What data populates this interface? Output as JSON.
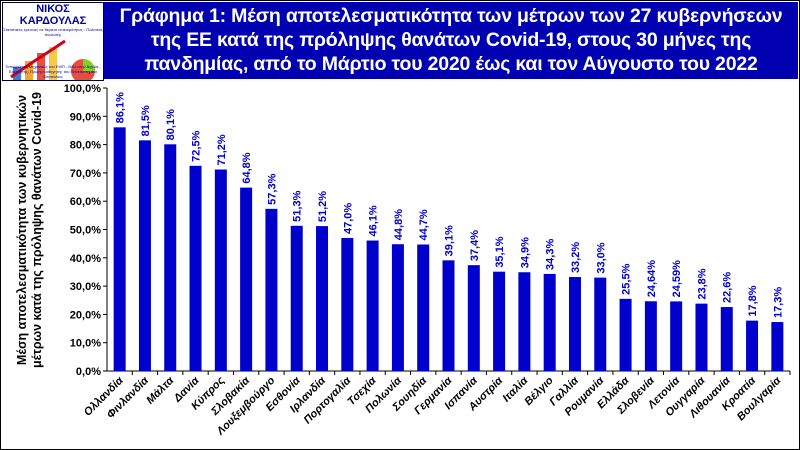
{
  "logo": {
    "name": "ΝΙΚΟΣ ΚΑΡΔΟΥΛΑΣ",
    "subtitle": "Στατιστικός έρευνας σε θέματα επικαιρότητας - Πολιτικός Αναλυτής",
    "footer": "Τοπογράφος Μηχανικός του ΕΜΠ - MSc στην Αγγλία - Ερευνητής, Πρώην καθηγητής του Πανεπιστημίου Θεσσαλίας"
  },
  "chart_data": {
    "type": "bar",
    "title": "Γράφημα 1: Μέση αποτελεσματικότητα των μέτρων των 27 κυβερνήσεων της ΕΕ κατά της πρόληψης θανάτων Covid-19, στους 30 μήνες της πανδημίας, από το Μάρτιο του 2020 έως και τον Αύγουστο του 2022",
    "title_lines": [
      "Γράφημα 1: Μέση αποτελεσματικότητα των μέτρων των 27 κυβερνήσεων",
      "της  ΕΕ  κατά της πρόληψης θανάτων Covid-19, στους 30 μήνες της",
      "πανδημίας, από το Μάρτιο του 2020 έως και τον Αύγουστο του 2022"
    ],
    "ylabel_lines": [
      "Μέση αποτελεσματικότητα των κυβερνητικών",
      "μέτρων κατά της πρόληψης θανάτων Covid-19"
    ],
    "xlabel": "",
    "ylim": [
      0,
      100
    ],
    "yticks": [
      "0,0%",
      "10,0%",
      "20,0%",
      "30,0%",
      "40,0%",
      "50,0%",
      "60,0%",
      "70,0%",
      "80,0%",
      "90,0%",
      "100,0%"
    ],
    "grid": false,
    "bar_color": "#0000cc",
    "categories": [
      "Ολλανδία",
      "Φινλανδία",
      "Μάλτα",
      "Δανία",
      "Κύπρος",
      "Σλοβακία",
      "Λουξεμβούργο",
      "Εσθονία",
      "Ιρλανδία",
      "Πορτογαλία",
      "Τσεχία",
      "Πολωνία",
      "Σουηδία",
      "Γερμανία",
      "Ισπανία",
      "Αυστρία",
      "Ιταλία",
      "Βέλγιο",
      "Γαλλία",
      "Ρουμανία",
      "Ελλάδα",
      "Σλοβενία",
      "Λετονία",
      "Ουγγαρία",
      "Λιθουανία",
      "Κροατία",
      "Βουλγαρία"
    ],
    "values": [
      86.1,
      81.5,
      80.1,
      72.5,
      71.2,
      64.8,
      57.3,
      51.3,
      51.2,
      47.0,
      46.1,
      44.8,
      44.7,
      39.1,
      37.4,
      35.1,
      34.9,
      34.3,
      33.2,
      33.0,
      25.5,
      24.64,
      24.59,
      23.8,
      22.6,
      17.8,
      17.3
    ],
    "data_labels": [
      "86,1%",
      "81,5%",
      "80,1%",
      "72,5%",
      "71,2%",
      "64,8%",
      "57,3%",
      "51,3%",
      "51,2%",
      "47,0%",
      "46,1%",
      "44,8%",
      "44,7%",
      "39,1%",
      "37,4%",
      "35,1%",
      "34,9%",
      "34,3%",
      "33,2%",
      "33,0%",
      "25,5%",
      "24,64%",
      "24,59%",
      "23,8%",
      "22,6%",
      "17,8%",
      "17,3%"
    ]
  }
}
